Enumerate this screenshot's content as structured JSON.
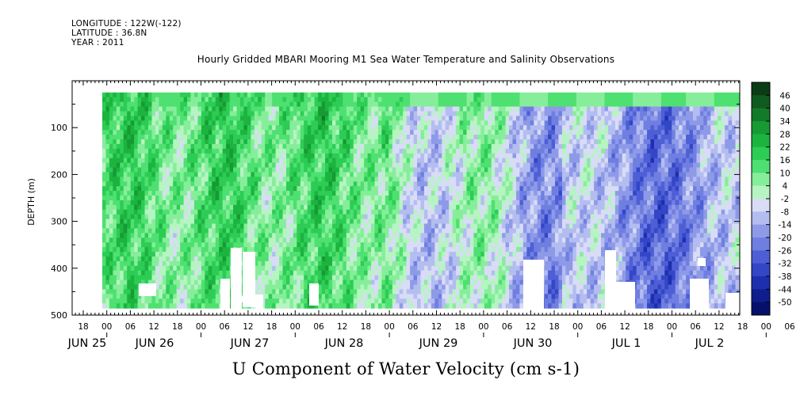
{
  "header": {
    "longitude": "LONGITUDE : 122W(-122)",
    "latitude": "LATITUDE : 36.8N",
    "year": "YEAR : 2011"
  },
  "chart_data": {
    "type": "heatmap",
    "title": "Hourly Gridded MBARI Mooring M1 Sea Water Temperature and Salinity Observations",
    "bottom_title": "U Component of Water Velocity (cm s-1)",
    "ylabel": "DEPTH (m)",
    "ylim": [
      500,
      0
    ],
    "y_ticks": [
      100,
      200,
      300,
      400,
      500
    ],
    "x_hour_ticks": [
      "18",
      "00",
      "06",
      "12",
      "18",
      "00",
      "06",
      "12",
      "18",
      "00",
      "06",
      "12",
      "18",
      "00",
      "06",
      "12",
      "18",
      "00",
      "06",
      "12",
      "18",
      "00",
      "06",
      "12",
      "18",
      "00",
      "06",
      "12",
      "18",
      "00",
      "06",
      "12"
    ],
    "x_day_labels": [
      "JUN 25",
      "JUN 26",
      "JUN 27",
      "JUN 28",
      "JUN 29",
      "JUN 30",
      "JUL  1",
      "JUL  2"
    ],
    "colorbar": {
      "labels": [
        "46",
        "40",
        "34",
        "28",
        "22",
        "16",
        "10",
        "4",
        "-2",
        "-8",
        "-14",
        "-20",
        "-26",
        "-32",
        "-38",
        "-44",
        "-50"
      ],
      "colors": [
        "#0b3d14",
        "#0f5a1e",
        "#127a28",
        "#169a33",
        "#1cb33f",
        "#2ccc55",
        "#4ee070",
        "#86ee9a",
        "#b6f4c2",
        "#d8dcf6",
        "#b4bdf0",
        "#8e9ae8",
        "#6f7fe0",
        "#4e5fd6",
        "#3346c6",
        "#1d2fae",
        "#0f1e8c",
        "#06106a"
      ]
    },
    "depth_range": "≈25 m to ≈485 m",
    "time_range": "Jun 25 2011 ≈06:00 to Jul 2 2011 ≈18:00 (hourly)",
    "value_range": [
      -50,
      46
    ],
    "regimes": [
      {
        "period": "Jun 25 06:00 – Jun 29",
        "u_range": [
          0,
          25
        ],
        "pattern": "mostly positive (eastward), green"
      },
      {
        "period": "Jun 29 – Jun 30 18:00",
        "u_range": [
          -15,
          20
        ],
        "pattern": "mixed green and light blue"
      },
      {
        "period": "Jun 30 18:00 – Jul 2 18:00",
        "u_range": [
          -30,
          10
        ],
        "pattern": "mostly negative (westward), blue"
      }
    ]
  }
}
